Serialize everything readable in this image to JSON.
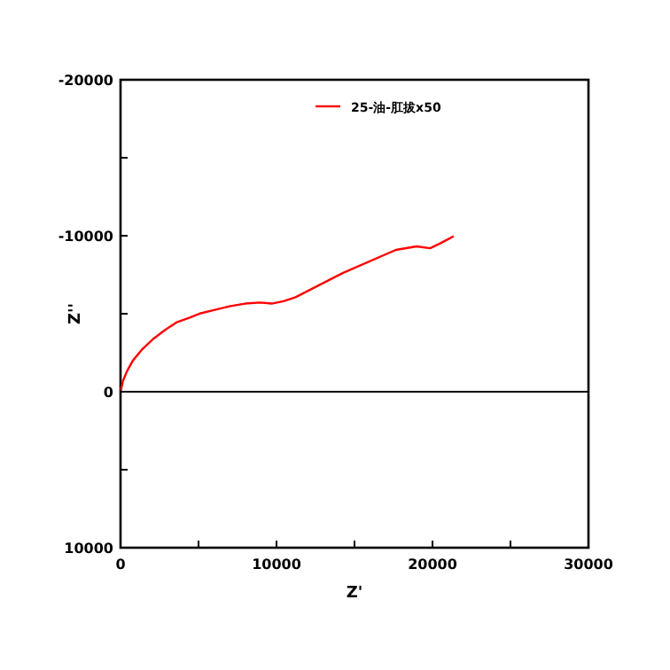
{
  "chart_data": {
    "type": "line",
    "xlabel": "Z'",
    "ylabel": "Z''",
    "x": [
      30,
      150,
      420,
      800,
      1360,
      2130,
      2880,
      3640,
      4400,
      5150,
      6100,
      7050,
      7990,
      8940,
      9690,
      10450,
      11220,
      14240,
      17650,
      18980,
      19850,
      20490,
      21360
    ],
    "series": [
      {
        "name": "25-油-肛拔x50",
        "color": "#ff0000",
        "values": [
          -100,
          -680,
          -1330,
          -2010,
          -2690,
          -3410,
          -3980,
          -4470,
          -4740,
          -5030,
          -5260,
          -5490,
          -5650,
          -5720,
          -5650,
          -5800,
          -6060,
          -7610,
          -9090,
          -9320,
          -9200,
          -9510,
          -9970
        ]
      }
    ],
    "xlim": [
      0,
      30000
    ],
    "xticks": [
      0,
      {
        "value": 5000,
        "label": null
      },
      10000,
      {
        "value": 15000,
        "label": null
      },
      20000,
      {
        "value": 25000,
        "label": null
      },
      30000
    ],
    "ylim": [
      10000,
      -20000
    ],
    "yticks": [
      -20000,
      {
        "value": -15000,
        "label": null
      },
      -10000,
      {
        "value": -5000,
        "label": null
      },
      0,
      {
        "value": 5000,
        "label": null
      },
      10000
    ],
    "ref_lines": [
      {
        "axis": "y",
        "value": 0,
        "color": "#000000"
      }
    ],
    "grid": false,
    "legend": "top",
    "line_style": "solid"
  }
}
